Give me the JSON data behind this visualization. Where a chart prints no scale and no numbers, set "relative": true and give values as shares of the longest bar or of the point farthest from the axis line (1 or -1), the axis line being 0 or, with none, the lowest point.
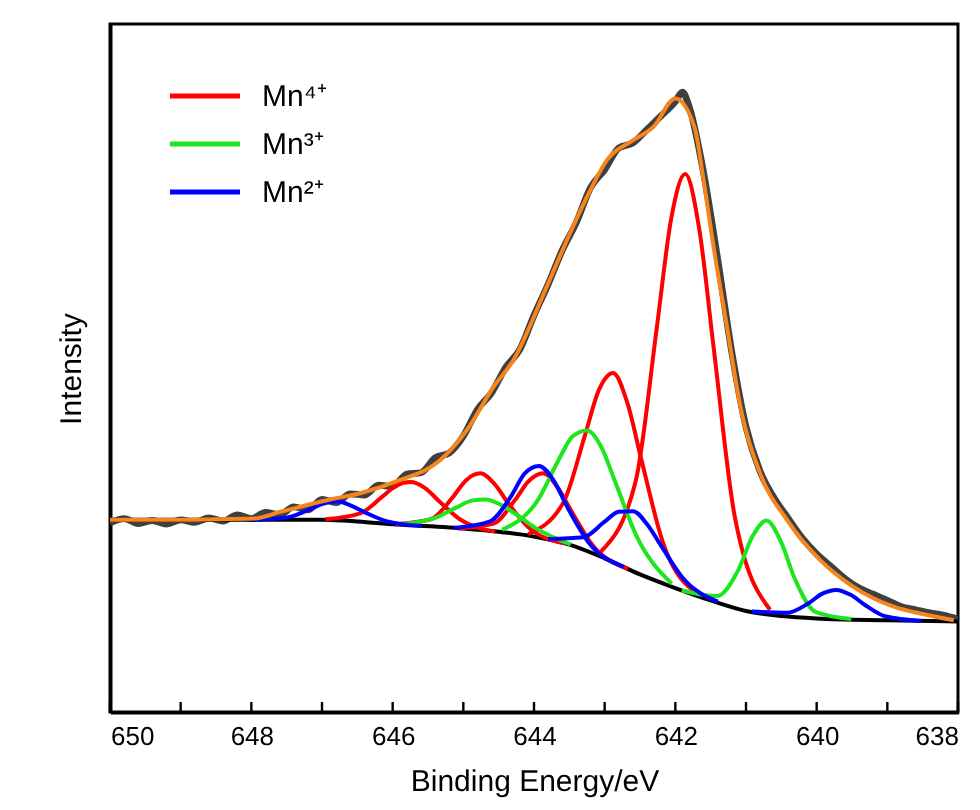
{
  "chart_data": {
    "type": "line",
    "xlabel": "Binding Energy/eV",
    "ylabel": "Intensity",
    "relative": true,
    "legend": "top left",
    "grid": false,
    "line_style": "solid",
    "marker": "none",
    "xlim": [
      650,
      638
    ],
    "xticks": [
      650,
      {
        "value": 649,
        "label": null
      },
      648,
      {
        "value": 647,
        "label": null
      },
      646,
      {
        "value": 645,
        "label": null
      },
      644,
      {
        "value": 643,
        "label": null
      },
      642,
      {
        "value": 641,
        "label": null
      },
      640,
      {
        "value": 639,
        "label": null
      },
      638
    ],
    "series": [
      {
        "color": "#404040",
        "x": [
          650,
          649.8,
          649.6,
          649.4,
          649.2,
          649.0,
          648.8,
          648.6,
          648.4,
          648.2,
          648.0,
          647.8,
          647.6,
          647.4,
          647.2,
          647.0,
          646.8,
          646.6,
          646.4,
          646.2,
          646.0,
          645.8,
          645.6,
          645.4,
          645.2,
          645.0,
          644.8,
          644.6,
          644.4,
          644.2,
          644.0,
          643.8,
          643.6,
          643.4,
          643.2,
          643.0,
          642.8,
          642.6,
          642.4,
          642.2,
          642.0,
          641.9,
          641.8,
          641.6,
          641.4,
          641.2,
          641.0,
          640.8,
          640.6,
          640.4,
          640.2,
          640.0,
          639.8,
          639.6,
          639.4,
          639.2,
          639.0,
          638.8,
          638.6,
          638.4,
          638.2,
          638.0
        ],
        "values": [
          0.305,
          0.312,
          0.304,
          0.309,
          0.303,
          0.31,
          0.306,
          0.313,
          0.308,
          0.318,
          0.312,
          0.322,
          0.318,
          0.331,
          0.326,
          0.343,
          0.338,
          0.352,
          0.35,
          0.366,
          0.364,
          0.384,
          0.386,
          0.41,
          0.418,
          0.445,
          0.488,
          0.515,
          0.556,
          0.585,
          0.64,
          0.69,
          0.745,
          0.79,
          0.846,
          0.875,
          0.91,
          0.918,
          0.94,
          0.962,
          0.985,
          1.0,
          0.975,
          0.87,
          0.73,
          0.58,
          0.46,
          0.388,
          0.345,
          0.312,
          0.28,
          0.255,
          0.235,
          0.215,
          0.2,
          0.19,
          0.18,
          0.17,
          0.165,
          0.16,
          0.156,
          0.15
        ]
      },
      {
        "color": "#000000",
        "x": [
          650,
          647,
          646,
          645,
          644,
          643.5,
          643,
          642.5,
          642,
          641.5,
          641,
          640.5,
          640,
          639,
          638
        ],
        "values": [
          0.31,
          0.31,
          0.303,
          0.296,
          0.283,
          0.27,
          0.248,
          0.222,
          0.2,
          0.18,
          0.163,
          0.155,
          0.151,
          0.148,
          0.146
        ]
      },
      {
        "name": "Mn⁴⁺",
        "color": "#ff0000",
        "x": [
          643.06,
          642.56,
          642.26,
          642.06,
          641.86,
          641.66,
          641.46,
          641.16,
          640.66
        ],
        "values": [
          0.258,
          0.373,
          0.622,
          0.795,
          0.868,
          0.778,
          0.59,
          0.316,
          0.165
        ]
      },
      {
        "color": "#ff0000",
        "x": [
          644.08,
          643.58,
          643.28,
          643.08,
          642.88,
          642.68,
          642.48,
          642.18,
          641.68
        ],
        "values": [
          0.287,
          0.339,
          0.446,
          0.52,
          0.547,
          0.499,
          0.407,
          0.275,
          0.19
        ]
      },
      {
        "color": "#ff0000",
        "x": [
          645.07,
          644.57,
          644.27,
          644.07,
          643.87,
          643.67,
          643.47,
          643.17,
          642.67
        ],
        "values": [
          0.296,
          0.304,
          0.342,
          0.373,
          0.385,
          0.363,
          0.324,
          0.269,
          0.231
        ]
      },
      {
        "color": "#ff0000",
        "x": [
          645.96,
          645.46,
          645.16,
          644.96,
          644.76,
          644.56,
          644.36,
          644.06,
          643.56
        ],
        "values": [
          0.303,
          0.311,
          0.345,
          0.374,
          0.385,
          0.368,
          0.336,
          0.296,
          0.272
        ]
      },
      {
        "color": "#ff0000",
        "x": [
          646.95,
          646.45,
          646.15,
          645.95,
          645.75,
          645.55,
          645.35,
          645.05,
          644.55
        ],
        "values": [
          0.311,
          0.321,
          0.347,
          0.365,
          0.371,
          0.362,
          0.341,
          0.311,
          0.291
        ]
      },
      {
        "name": "Mn³⁺",
        "color": "#1ee61e",
        "x": [
          645.88,
          645.38,
          645.08,
          644.88,
          644.68,
          644.48,
          644.28,
          643.98,
          643.48
        ],
        "values": [
          0.303,
          0.314,
          0.331,
          0.341,
          0.343,
          0.335,
          0.321,
          0.297,
          0.27
        ]
      },
      {
        "color": "#1ee61e",
        "x": [
          644.45,
          643.95,
          643.65,
          643.45,
          643.25,
          643.05,
          642.85,
          642.55,
          642.05
        ],
        "values": [
          0.294,
          0.341,
          0.407,
          0.445,
          0.454,
          0.428,
          0.371,
          0.284,
          0.207
        ]
      },
      {
        "color": "#1ee61e",
        "x": [
          641.91,
          641.41,
          641.11,
          640.91,
          640.71,
          640.51,
          640.31,
          640.01,
          639.51
        ],
        "values": [
          0.196,
          0.187,
          0.229,
          0.283,
          0.309,
          0.276,
          0.215,
          0.161,
          0.15
        ]
      },
      {
        "name": "Mn²⁺",
        "color": "#0000ff",
        "x": [
          647.99,
          647.49,
          647.19,
          646.99,
          646.79,
          646.59,
          646.39,
          646.09,
          645.59
        ],
        "values": [
          0.31,
          0.314,
          0.326,
          0.336,
          0.34,
          0.333,
          0.322,
          0.308,
          0.3
        ]
      },
      {
        "color": "#0000ff",
        "x": [
          645.13,
          644.63,
          644.33,
          644.13,
          643.93,
          643.73,
          643.53,
          643.23,
          642.73
        ],
        "values": [
          0.297,
          0.307,
          0.347,
          0.385,
          0.397,
          0.375,
          0.331,
          0.274,
          0.234
        ]
      },
      {
        "color": "#0000ff",
        "x": [
          643.8,
          643.3,
          643.0,
          642.8,
          642.6,
          642.4,
          642.2,
          641.9,
          641.4
        ],
        "values": [
          0.279,
          0.282,
          0.307,
          0.323,
          0.324,
          0.303,
          0.268,
          0.217,
          0.178
        ]
      },
      {
        "color": "#0000ff",
        "x": [
          640.92,
          640.42,
          640.12,
          639.92,
          639.72,
          639.52,
          639.32,
          639.02,
          638.52
        ],
        "values": [
          0.162,
          0.16,
          0.175,
          0.191,
          0.197,
          0.189,
          0.173,
          0.154,
          0.147
        ]
      },
      {
        "color": "#f7851c",
        "x": [
          650,
          649,
          648.5,
          647.97,
          647.59,
          646.84,
          646.46,
          645.9,
          645.33,
          644.95,
          644.57,
          644.29,
          643.82,
          643.5,
          643.25,
          642.97,
          642.59,
          642.31,
          642.0,
          641.73,
          641.6,
          641.46,
          641.27,
          641.08,
          640.8,
          640.42,
          639.95,
          639.48,
          638.91,
          638.5,
          638.06
        ],
        "values": [
          0.31,
          0.31,
          0.311,
          0.312,
          0.323,
          0.344,
          0.353,
          0.374,
          0.406,
          0.455,
          0.525,
          0.568,
          0.686,
          0.77,
          0.831,
          0.89,
          0.923,
          0.944,
          0.99,
          0.944,
          0.858,
          0.751,
          0.622,
          0.493,
          0.385,
          0.31,
          0.245,
          0.202,
          0.17,
          0.158,
          0.148
        ]
      }
    ]
  }
}
